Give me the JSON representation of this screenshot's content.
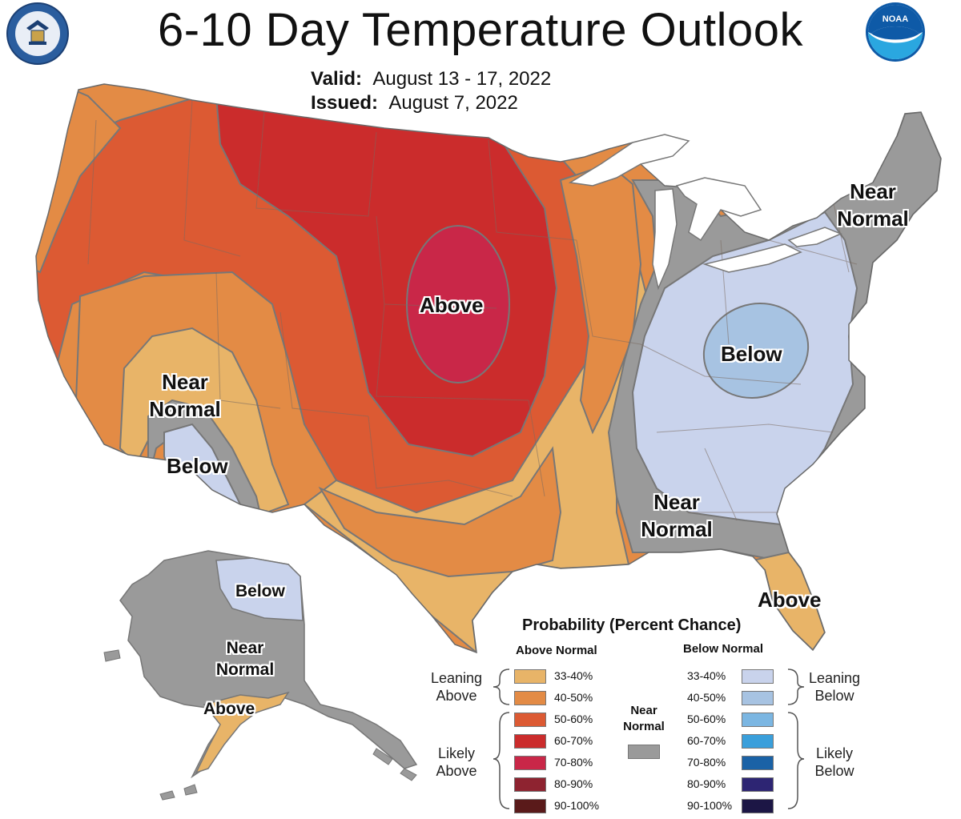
{
  "title": "6-10 Day Temperature Outlook",
  "valid_label": "Valid:",
  "valid_dates": "August 13 - 17, 2022",
  "issued_label": "Issued:",
  "issued_date": "August 7, 2022",
  "logos": {
    "left": "department-of-commerce-seal",
    "right": "noaa-logo",
    "right_text": "NOAA"
  },
  "map_labels": {
    "above_center": "Above",
    "below_east": "Below",
    "near_normal_ne_1": "Near",
    "near_normal_ne_2": "Normal",
    "near_normal_se_1": "Near",
    "near_normal_se_2": "Normal",
    "near_normal_sw_1": "Near",
    "near_normal_sw_2": "Normal",
    "below_sw": "Below",
    "above_fl": "Above",
    "ak_below": "Below",
    "ak_near_1": "Near",
    "ak_near_2": "Normal",
    "ak_above": "Above"
  },
  "legend": {
    "title": "Probability (Percent Chance)",
    "above_header": "Above Normal",
    "below_header": "Below Normal",
    "near_header_1": "Near",
    "near_header_2": "Normal",
    "leaning_above_1": "Leaning",
    "leaning_above_2": "Above",
    "likely_above_1": "Likely",
    "likely_above_2": "Above",
    "leaning_below_1": "Leaning",
    "leaning_below_2": "Below",
    "likely_below_1": "Likely",
    "likely_below_2": "Below",
    "above": [
      {
        "range": "33-40%",
        "color": "#E8B468"
      },
      {
        "range": "40-50%",
        "color": "#E38B45"
      },
      {
        "range": "50-60%",
        "color": "#DC5A33"
      },
      {
        "range": "60-70%",
        "color": "#CB2C2C"
      },
      {
        "range": "70-80%",
        "color": "#C92748"
      },
      {
        "range": "80-90%",
        "color": "#8E2330"
      },
      {
        "range": "90-100%",
        "color": "#5A1A1A"
      }
    ],
    "below": [
      {
        "range": "33-40%",
        "color": "#C9D3EC"
      },
      {
        "range": "40-50%",
        "color": "#A7C3E2"
      },
      {
        "range": "50-60%",
        "color": "#7BB6E2"
      },
      {
        "range": "60-70%",
        "color": "#3A9FDB"
      },
      {
        "range": "70-80%",
        "color": "#1A62A6"
      },
      {
        "range": "80-90%",
        "color": "#2D2573"
      },
      {
        "range": "90-100%",
        "color": "#1C1645"
      }
    ],
    "near_color": "#9A9A9A"
  }
}
